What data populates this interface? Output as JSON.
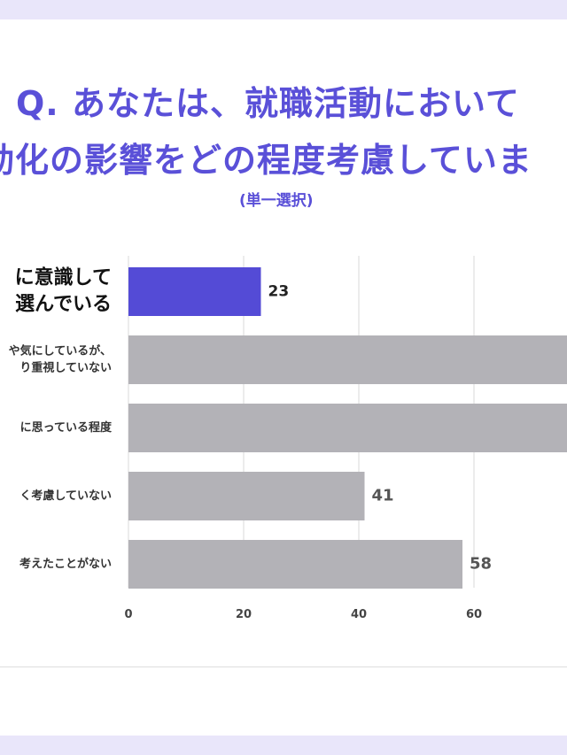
{
  "title_line1": "Q. あなたは、就職活動において",
  "title_line2": "動化の影響をどの程度考慮していま",
  "subtitle": "(単一選択)",
  "colors": {
    "accent": "#5a50d8",
    "highlight_bar": "#544bd6",
    "bar": "#b3b2b7",
    "band": "#e9e6fa",
    "grid": "#e6e6e6",
    "tick_text": "#444444",
    "value_text": "#555555"
  },
  "chart_data": {
    "type": "bar",
    "orientation": "horizontal",
    "categories": [
      [
        "に意識して",
        "選んでいる"
      ],
      [
        "や気にしているが、",
        "り重視していない"
      ],
      [
        "に思っている程度"
      ],
      [
        "く考慮していない"
      ],
      [
        "考えたことがない"
      ]
    ],
    "values": [
      23,
      null,
      null,
      41,
      58
    ],
    "value_labels": [
      "23",
      "",
      "",
      "41",
      "58"
    ],
    "highlight_index": 0,
    "xlim": [
      0,
      80
    ],
    "x_ticks": [
      0,
      20,
      40,
      60
    ],
    "grid": true,
    "title": "",
    "xlabel": "",
    "ylabel": ""
  }
}
